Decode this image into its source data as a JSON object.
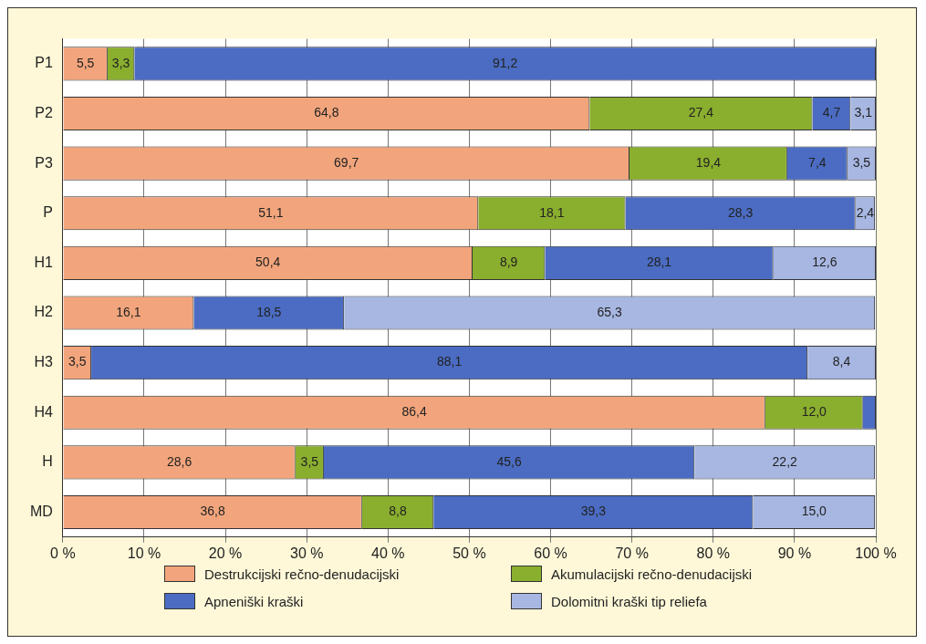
{
  "chart_data": {
    "type": "bar",
    "orientation": "horizontal",
    "stacked": true,
    "categories": [
      "P1",
      "P2",
      "P3",
      "P",
      "H1",
      "H2",
      "H3",
      "H4",
      "H",
      "MD"
    ],
    "series": [
      {
        "name": "Destrukcijski rečno-denudacijski",
        "color": "#f2a57c",
        "values": [
          5.5,
          64.8,
          69.7,
          51.1,
          50.4,
          16.1,
          3.5,
          86.4,
          28.6,
          36.8
        ],
        "value_labels": [
          "5,5",
          "64,8",
          "69,7",
          "51,1",
          "50,4",
          "16,1",
          "3,5",
          "86,4",
          "28,6",
          "36,8"
        ]
      },
      {
        "name": "Akumulacijski rečno-denudacijski",
        "color": "#8aae2e",
        "values": [
          3.3,
          27.4,
          19.4,
          18.1,
          8.9,
          null,
          null,
          12.0,
          3.5,
          8.8
        ],
        "value_labels": [
          "3,3",
          "27,4",
          "19,4",
          "18,1",
          "8,9",
          null,
          null,
          "12,0",
          "3,5",
          "8,8"
        ]
      },
      {
        "name": "Apneniški kraški",
        "color": "#4b6cc2",
        "values": [
          91.2,
          4.7,
          7.4,
          28.3,
          28.1,
          18.5,
          88.1,
          1.6,
          45.6,
          39.3
        ],
        "value_labels": [
          "91,2",
          "4,7",
          "7,4",
          "28,3",
          "28,1",
          "18,5",
          "88,1",
          null,
          "45,6",
          "39,3"
        ]
      },
      {
        "name": "Dolomitni kraški tip reliefa",
        "color": "#a7b7e2",
        "values": [
          null,
          3.1,
          3.5,
          2.4,
          12.6,
          65.3,
          8.4,
          null,
          22.2,
          15.0
        ],
        "value_labels": [
          null,
          "3,1",
          "3,5",
          "2,4",
          "12,6",
          "65,3",
          "8,4",
          null,
          "22,2",
          "15,0"
        ]
      }
    ],
    "xlim": [
      0,
      100
    ],
    "xticks": [
      {
        "value": 0,
        "label": "0 %"
      },
      {
        "value": 10,
        "label": "10 %"
      },
      {
        "value": 20,
        "label": "20 %"
      },
      {
        "value": 30,
        "label": "30 %"
      },
      {
        "value": 40,
        "label": "40 %"
      },
      {
        "value": 50,
        "label": "50 %"
      },
      {
        "value": 60,
        "label": "60 %"
      },
      {
        "value": 70,
        "label": "70 %"
      },
      {
        "value": 80,
        "label": "80 %"
      },
      {
        "value": 90,
        "label": "90 %"
      },
      {
        "value": 100,
        "label": "100 %"
      }
    ],
    "grid": "x",
    "legend": "bottom"
  }
}
